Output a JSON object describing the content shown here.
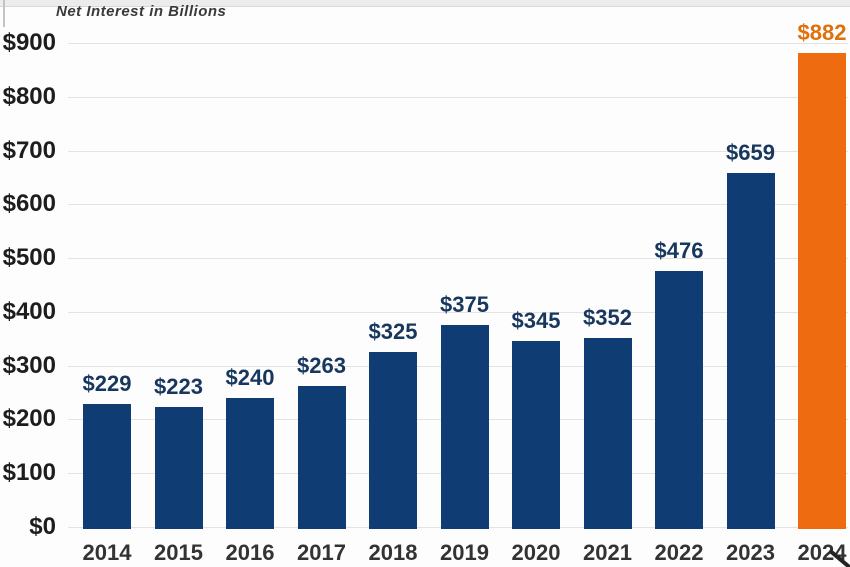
{
  "chart_data": {
    "type": "bar",
    "title": "Net Interest in Billions",
    "categories": [
      "2014",
      "2015",
      "2016",
      "2017",
      "2018",
      "2019",
      "2020",
      "2021",
      "2022",
      "2023",
      "2024"
    ],
    "values": [
      229,
      223,
      240,
      263,
      325,
      375,
      345,
      352,
      476,
      659,
      882
    ],
    "value_labels": [
      "$229",
      "$223",
      "$240",
      "$263",
      "$325",
      "$375",
      "$345",
      "$352",
      "$476",
      "$659",
      "$882"
    ],
    "xlabel": "",
    "ylabel": "",
    "ylim": [
      0,
      900
    ],
    "ytick_interval": 100,
    "ytick_labels": [
      "$0",
      "$100",
      "$200",
      "$300",
      "$400",
      "$500",
      "$600",
      "$700",
      "$800",
      "$900"
    ],
    "grid": "horizontal",
    "legend": "none",
    "highlight_index": 10,
    "colors": {
      "bar": "#0E3C73",
      "bar_highlight": "#EE6B0F",
      "value_label": "#17375E",
      "value_label_highlight": "#E0700A",
      "ytick_label": "#1d1d1d",
      "xtick_label": "#333333",
      "gridline": "#e3e3e3",
      "title": "#3a3a3a",
      "background": "#fdfdfd"
    }
  },
  "annotations": {
    "corner_mark": "/"
  }
}
